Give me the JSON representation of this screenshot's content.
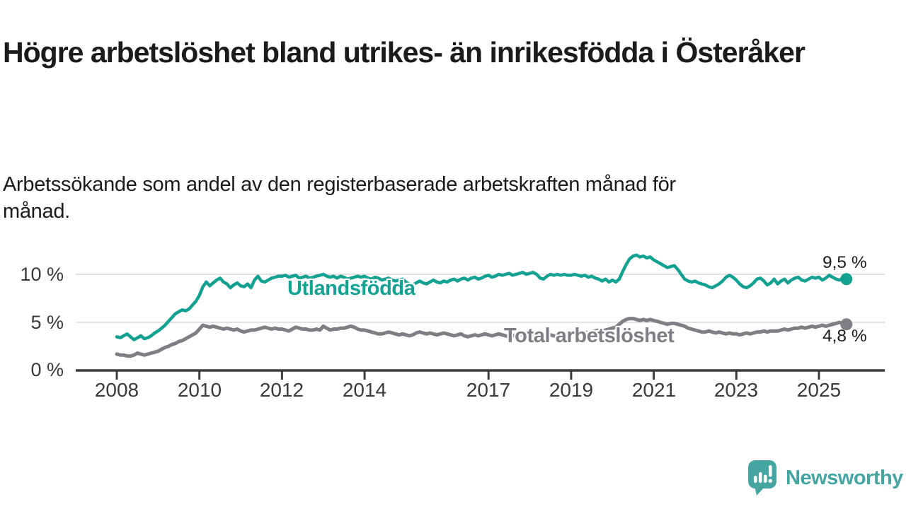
{
  "title": "Högre arbetslöshet bland utrikes- än inrikesfödda i Österåker",
  "subtitle": "Arbetssökande som andel av den registerbaserade arbetskraften månad för månad.",
  "colors": {
    "series_utlandsfodda": "#13a191",
    "series_total": "#7e7e85",
    "axis": "#3c3c3c",
    "grid": "#d9d9d9",
    "text": "#1b1b1b",
    "logo": "#45a5a1"
  },
  "branding": {
    "logo_text": "Newsworthy",
    "logo_icon": "newsworthy-speech-bubble-bar-chart-icon"
  },
  "chart_data": {
    "type": "line",
    "x_unit": "month",
    "x_start": "2008-01",
    "x_end": "2025-09",
    "x_tick_labels": [
      "2008",
      "2010",
      "2012",
      "2014",
      "2017",
      "2019",
      "2021",
      "2023",
      "2025"
    ],
    "y_tick_labels": [
      "0 %",
      "5 %",
      "10 %"
    ],
    "ylim": [
      0,
      13
    ],
    "grid": "horizontal",
    "legend_position": "inline-labels-on-lines",
    "series": [
      {
        "name": "Utlandsfödda",
        "color": "#13a191",
        "end_label": "9,5 %",
        "values": [
          3.5,
          3.4,
          3.6,
          3.8,
          3.5,
          3.2,
          3.4,
          3.6,
          3.3,
          3.4,
          3.6,
          3.9,
          4.1,
          4.4,
          4.7,
          5.1,
          5.5,
          5.9,
          6.1,
          6.3,
          6.2,
          6.4,
          6.8,
          7.2,
          7.8,
          8.7,
          9.2,
          8.8,
          9.1,
          9.4,
          9.6,
          9.2,
          9.0,
          8.6,
          8.9,
          9.1,
          8.8,
          8.7,
          9.0,
          8.6,
          9.4,
          9.8,
          9.3,
          9.2,
          9.4,
          9.6,
          9.7,
          9.8,
          9.8,
          9.9,
          9.7,
          9.8,
          9.9,
          9.6,
          9.7,
          9.8,
          9.6,
          9.7,
          9.8,
          9.9,
          10.0,
          9.8,
          9.7,
          9.8,
          9.6,
          9.8,
          9.7,
          9.5,
          9.6,
          9.7,
          9.8,
          9.7,
          9.8,
          9.6,
          9.5,
          9.7,
          9.6,
          9.4,
          9.5,
          9.6,
          9.4,
          9.3,
          9.4,
          9.5,
          9.2,
          9.0,
          8.9,
          9.1,
          9.3,
          9.1,
          9.0,
          9.2,
          9.4,
          9.2,
          9.1,
          9.3,
          9.2,
          9.4,
          9.5,
          9.3,
          9.5,
          9.6,
          9.4,
          9.6,
          9.7,
          9.5,
          9.6,
          9.8,
          9.9,
          9.7,
          9.8,
          10.0,
          9.9,
          10.0,
          10.1,
          9.9,
          10.0,
          10.1,
          10.2,
          10.0,
          10.1,
          10.2,
          10.0,
          9.6,
          9.5,
          9.8,
          10.0,
          9.9,
          10.0,
          9.9,
          10.0,
          9.9,
          9.9,
          10.0,
          9.9,
          9.8,
          9.9,
          9.7,
          9.8,
          9.6,
          9.5,
          9.3,
          9.5,
          9.2,
          9.4,
          9.2,
          9.5,
          10.3,
          11.0,
          11.6,
          11.9,
          12.0,
          11.8,
          11.9,
          11.7,
          11.8,
          11.5,
          11.3,
          11.1,
          10.9,
          10.7,
          10.8,
          10.9,
          10.5,
          10.0,
          9.5,
          9.3,
          9.2,
          9.3,
          9.1,
          9.0,
          8.9,
          8.7,
          8.6,
          8.8,
          9.0,
          9.3,
          9.7,
          9.9,
          9.7,
          9.4,
          9.0,
          8.7,
          8.6,
          8.8,
          9.1,
          9.5,
          9.6,
          9.3,
          8.9,
          9.1,
          9.5,
          9.0,
          9.3,
          9.5,
          9.1,
          9.4,
          9.6,
          9.7,
          9.4,
          9.3,
          9.5,
          9.7,
          9.6,
          9.7,
          9.4,
          9.6,
          9.9,
          9.7,
          9.5,
          9.4,
          9.6,
          9.5
        ]
      },
      {
        "name": "Total arbetslöshet",
        "color": "#7e7e85",
        "end_label": "4,8 %",
        "values": [
          1.7,
          1.6,
          1.6,
          1.5,
          1.5,
          1.6,
          1.8,
          1.7,
          1.6,
          1.7,
          1.8,
          1.9,
          2.0,
          2.2,
          2.4,
          2.5,
          2.7,
          2.8,
          3.0,
          3.1,
          3.3,
          3.5,
          3.7,
          3.9,
          4.3,
          4.7,
          4.6,
          4.5,
          4.6,
          4.5,
          4.4,
          4.3,
          4.4,
          4.3,
          4.2,
          4.3,
          4.1,
          4.0,
          4.1,
          4.2,
          4.2,
          4.3,
          4.4,
          4.5,
          4.4,
          4.3,
          4.4,
          4.3,
          4.3,
          4.2,
          4.1,
          4.3,
          4.5,
          4.4,
          4.3,
          4.3,
          4.2,
          4.2,
          4.3,
          4.2,
          4.6,
          4.4,
          4.2,
          4.3,
          4.3,
          4.4,
          4.4,
          4.5,
          4.6,
          4.5,
          4.3,
          4.2,
          4.2,
          4.1,
          4.0,
          3.9,
          3.8,
          3.8,
          3.9,
          4.0,
          3.9,
          3.8,
          3.7,
          3.8,
          3.7,
          3.6,
          3.7,
          3.9,
          4.0,
          3.9,
          3.8,
          3.9,
          3.8,
          3.7,
          3.8,
          3.9,
          3.8,
          3.7,
          3.6,
          3.7,
          3.8,
          3.6,
          3.5,
          3.6,
          3.7,
          3.6,
          3.7,
          3.8,
          3.7,
          3.6,
          3.7,
          3.8,
          3.7,
          3.6,
          3.5,
          3.6,
          3.7,
          3.8,
          3.7,
          3.8,
          3.7,
          3.8,
          3.7,
          3.6,
          3.5,
          3.6,
          3.7,
          3.6,
          3.5,
          3.6,
          3.7,
          3.8,
          3.8,
          3.9,
          3.8,
          3.9,
          4.0,
          3.9,
          4.0,
          4.1,
          4.2,
          4.1,
          4.2,
          4.3,
          4.4,
          4.5,
          4.8,
          5.1,
          5.3,
          5.4,
          5.4,
          5.3,
          5.2,
          5.3,
          5.2,
          5.3,
          5.2,
          5.1,
          5.0,
          4.9,
          4.8,
          4.9,
          4.9,
          4.8,
          4.7,
          4.6,
          4.4,
          4.3,
          4.2,
          4.1,
          4.0,
          4.0,
          4.1,
          4.0,
          3.9,
          4.0,
          3.9,
          3.8,
          3.9,
          3.8,
          3.8,
          3.7,
          3.8,
          3.9,
          3.8,
          3.9,
          4.0,
          4.0,
          4.1,
          4.0,
          4.1,
          4.1,
          4.1,
          4.2,
          4.3,
          4.2,
          4.3,
          4.4,
          4.4,
          4.5,
          4.4,
          4.5,
          4.6,
          4.5,
          4.6,
          4.7,
          4.6,
          4.7,
          4.8,
          4.9,
          5.0,
          4.9,
          4.8
        ]
      }
    ]
  }
}
